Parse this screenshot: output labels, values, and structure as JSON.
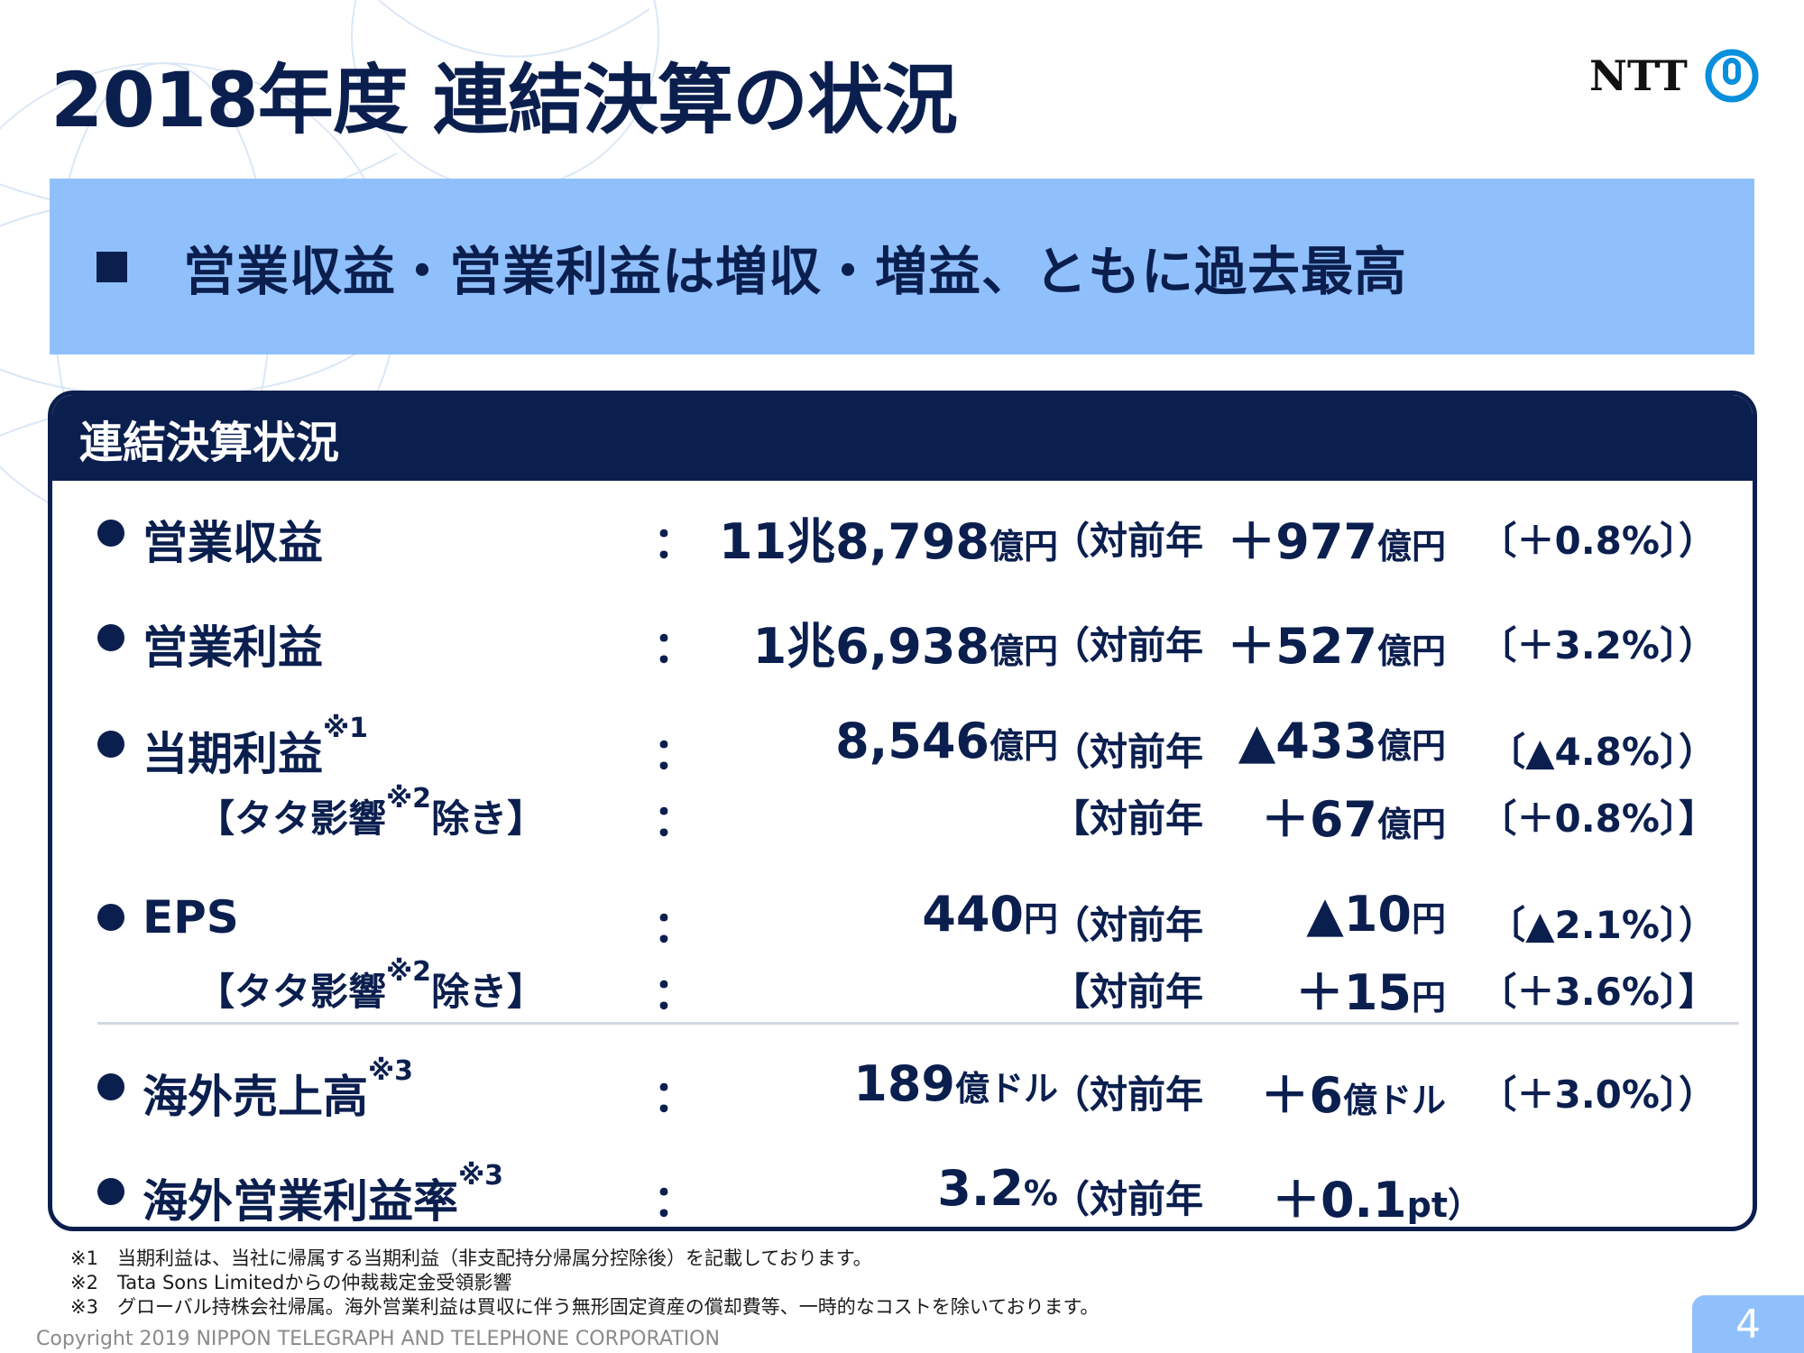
{
  "title": "2018年度 連結決算の状況",
  "logo": {
    "text": "NTT",
    "mark": "ntt-ring-logo"
  },
  "headline": "営業収益・営業利益は増収・増益、ともに過去最高",
  "panel": {
    "title": "連結決算状況",
    "rows": [
      {
        "label": "営業収益",
        "note": "",
        "colon": "：",
        "value": "11兆8,798",
        "value_unit": "億円",
        "yoy_label": "（対前年",
        "diff": "＋977",
        "diff_unit": "億円",
        "pct": "〔＋0.8%〕）"
      },
      {
        "label": "営業利益",
        "note": "",
        "colon": "：",
        "value": "1兆6,938",
        "value_unit": "億円",
        "yoy_label": "（対前年",
        "diff": "＋527",
        "diff_unit": "億円",
        "pct": "〔＋3.2%〕）"
      },
      {
        "label": "当期利益",
        "note": "※1",
        "colon": "：",
        "value": "8,546",
        "value_unit": "億円",
        "yoy_label": "（対前年",
        "diff": "▲433",
        "diff_unit": "億円",
        "pct": "〔▲4.8%〕）"
      },
      {
        "label_pre": "【タタ影響",
        "note": "※2",
        "label_post": "除き】",
        "colon": "：",
        "yoy_label": "【対前年",
        "diff": "＋67",
        "diff_unit": "億円",
        "pct": "〔＋0.8%〕】"
      },
      {
        "label": "EPS",
        "note": "",
        "colon": "：",
        "value": "440",
        "value_unit": "円",
        "yoy_label": "（対前年",
        "diff": "▲10",
        "diff_unit": "円",
        "pct": "〔▲2.1%〕）"
      },
      {
        "label_pre": "【タタ影響",
        "note": "※2",
        "label_post": "除き】",
        "colon": "：",
        "yoy_label": "【対前年",
        "diff": "＋15",
        "diff_unit": "円",
        "pct": "〔＋3.6%〕】"
      },
      {
        "label": "海外売上高",
        "note": "※3",
        "colon": "：",
        "value": "189",
        "value_unit": "億ドル",
        "yoy_label": "（対前年",
        "diff": "＋6",
        "diff_unit": "億ドル",
        "pct": "〔＋3.0%〕）"
      },
      {
        "label": "海外営業利益率",
        "note": "※3",
        "colon": "：",
        "value": "3.2",
        "value_unit": "%",
        "yoy_label": "（対前年",
        "diff": "＋0.1",
        "diff_unit": "pt）"
      }
    ]
  },
  "footnotes": [
    "※1　当期利益は、当社に帰属する当期利益（非支配持分帰属分控除後）を記載しております。",
    "※2　Tata Sons Limitedからの仲裁裁定金受領影響",
    "※3　グローバル持株会社帰属。海外営業利益は買収に伴う無形固定資産の償却費等、一時的なコストを除いております。"
  ],
  "copyright": "Copyright 2019 NIPPON TELEGRAPH AND TELEPHONE CORPORATION",
  "page_number": "4",
  "colors": {
    "navy": "#0b1f4f",
    "band": "#90c0fc",
    "white": "#ffffff"
  }
}
